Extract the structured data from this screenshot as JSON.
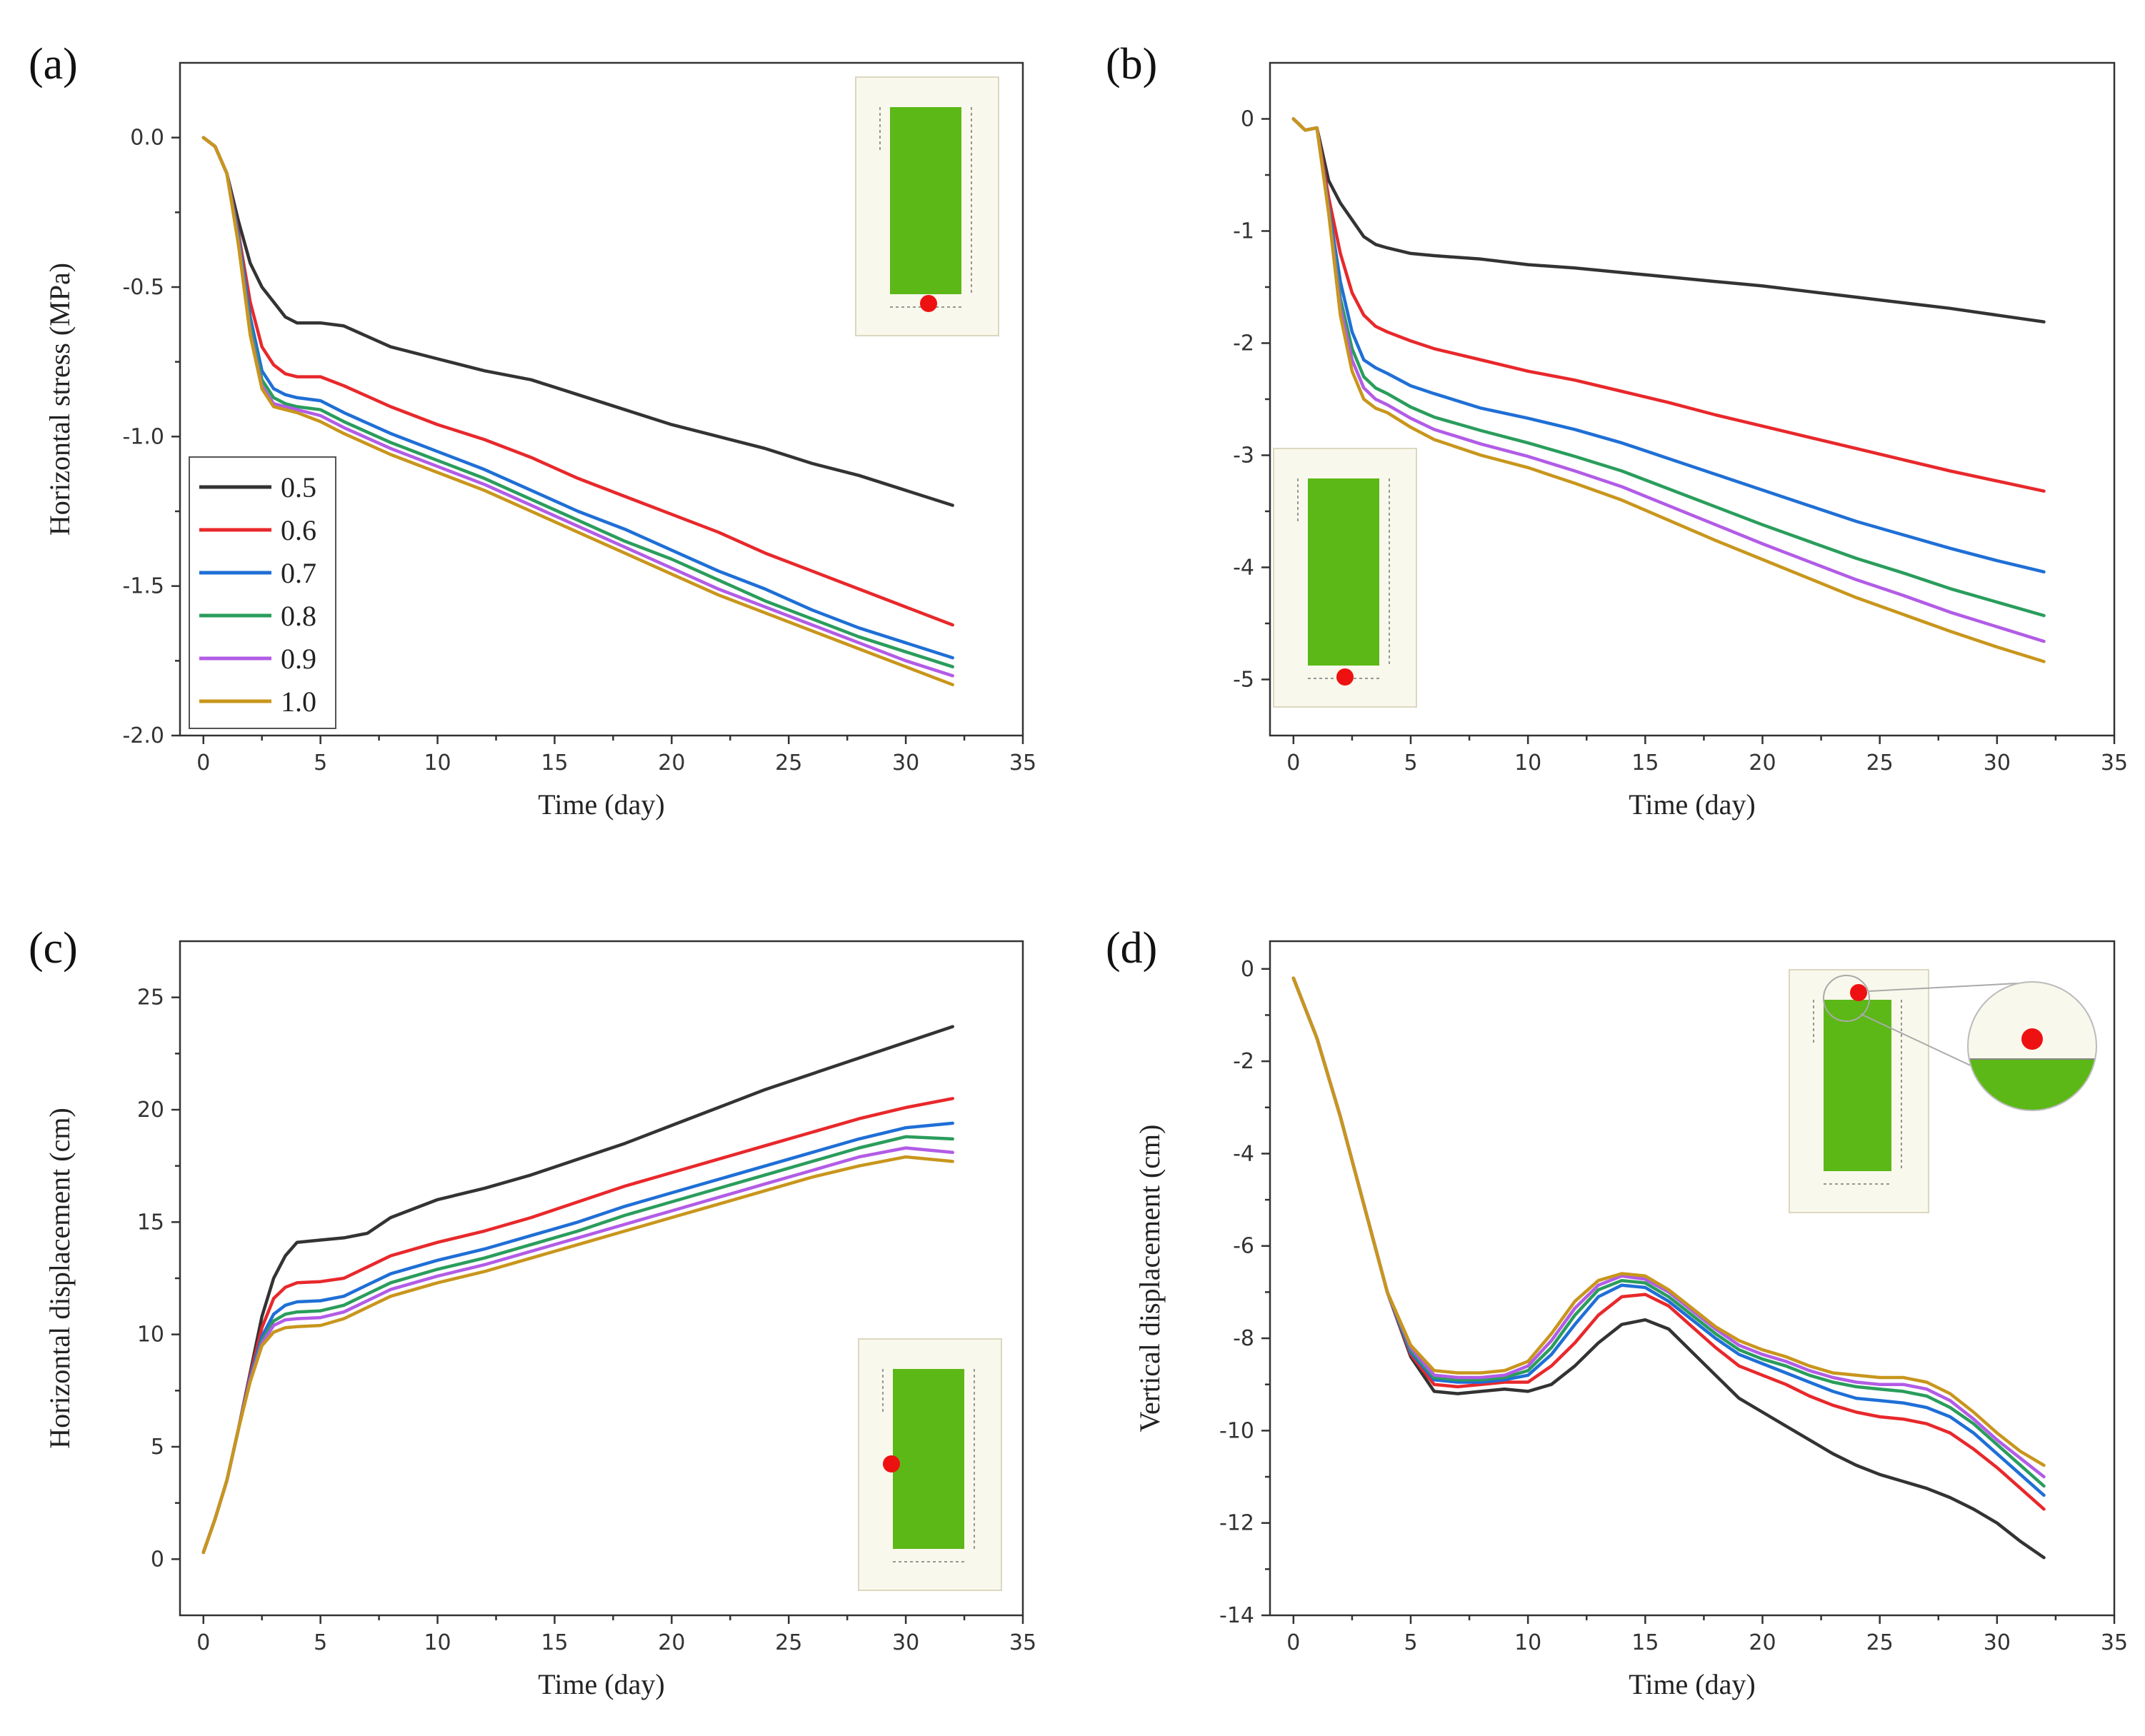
{
  "chart_data": [
    {
      "type": "line",
      "panel": "(a)",
      "xlabel": "Time (day)",
      "ylabel": "Horizontal stress (MPa)",
      "xlim": [
        -1,
        35
      ],
      "ylim": [
        -2.0,
        0.25
      ],
      "xticks": [
        0,
        5,
        10,
        15,
        20,
        25,
        30,
        35
      ],
      "yticks": [
        0.0,
        -0.5,
        -1.0,
        -1.5,
        -2.0
      ],
      "ytick_labels": [
        "0.0",
        "-0.5",
        "-1.0",
        "-1.5",
        "-2.0"
      ],
      "x": [
        0,
        0.5,
        1,
        1.5,
        2,
        2.5,
        3,
        3.5,
        4,
        5,
        6,
        8,
        10,
        12,
        14,
        16,
        18,
        20,
        22,
        24,
        26,
        28,
        30,
        32
      ],
      "series": [
        {
          "name": "0.5",
          "color": "#333333",
          "values": [
            0,
            -0.03,
            -0.12,
            -0.28,
            -0.42,
            -0.5,
            -0.55,
            -0.6,
            -0.62,
            -0.62,
            -0.63,
            -0.7,
            -0.74,
            -0.78,
            -0.81,
            -0.86,
            -0.91,
            -0.96,
            -1.0,
            -1.04,
            -1.09,
            -1.13,
            -1.18,
            -1.23
          ]
        },
        {
          "name": "0.6",
          "color": "#e8282b",
          "values": [
            0,
            -0.03,
            -0.12,
            -0.32,
            -0.55,
            -0.7,
            -0.76,
            -0.79,
            -0.8,
            -0.8,
            -0.83,
            -0.9,
            -0.96,
            -1.01,
            -1.07,
            -1.14,
            -1.2,
            -1.26,
            -1.32,
            -1.39,
            -1.45,
            -1.51,
            -1.57,
            -1.63
          ]
        },
        {
          "name": "0.7",
          "color": "#1f6fd6",
          "values": [
            0,
            -0.03,
            -0.12,
            -0.33,
            -0.6,
            -0.78,
            -0.84,
            -0.86,
            -0.87,
            -0.88,
            -0.92,
            -0.99,
            -1.05,
            -1.11,
            -1.18,
            -1.25,
            -1.31,
            -1.38,
            -1.45,
            -1.51,
            -1.58,
            -1.64,
            -1.69,
            -1.74
          ]
        },
        {
          "name": "0.8",
          "color": "#2a9d5c",
          "values": [
            0,
            -0.03,
            -0.12,
            -0.34,
            -0.63,
            -0.81,
            -0.87,
            -0.89,
            -0.9,
            -0.91,
            -0.95,
            -1.02,
            -1.08,
            -1.14,
            -1.21,
            -1.28,
            -1.35,
            -1.41,
            -1.48,
            -1.55,
            -1.61,
            -1.67,
            -1.72,
            -1.77
          ]
        },
        {
          "name": "0.9",
          "color": "#b25ce6",
          "values": [
            0,
            -0.03,
            -0.12,
            -0.35,
            -0.65,
            -0.83,
            -0.89,
            -0.9,
            -0.91,
            -0.93,
            -0.97,
            -1.04,
            -1.1,
            -1.16,
            -1.23,
            -1.3,
            -1.37,
            -1.44,
            -1.51,
            -1.57,
            -1.63,
            -1.69,
            -1.75,
            -1.8
          ]
        },
        {
          "name": "1.0",
          "color": "#c8961c",
          "values": [
            0,
            -0.03,
            -0.12,
            -0.36,
            -0.66,
            -0.84,
            -0.9,
            -0.91,
            -0.92,
            -0.95,
            -0.99,
            -1.06,
            -1.12,
            -1.18,
            -1.25,
            -1.32,
            -1.39,
            -1.46,
            -1.53,
            -1.59,
            -1.65,
            -1.71,
            -1.77,
            -1.83
          ]
        }
      ],
      "legend_position": "lower-left"
    },
    {
      "type": "line",
      "panel": "(b)",
      "xlabel": "Time (day)",
      "ylabel": "",
      "xlim": [
        -1,
        35
      ],
      "ylim": [
        -5.5,
        0.5
      ],
      "xticks": [
        0,
        5,
        10,
        15,
        20,
        25,
        30,
        35
      ],
      "yticks": [
        0,
        -1,
        -2,
        -3,
        -4,
        -5
      ],
      "ytick_labels": [
        "0",
        "-1",
        "-2",
        "-3",
        "-4",
        "-5"
      ],
      "x": [
        0,
        0.5,
        1,
        1.5,
        2,
        2.5,
        3,
        3.5,
        4,
        5,
        6,
        8,
        10,
        12,
        14,
        16,
        18,
        20,
        22,
        24,
        26,
        28,
        30,
        32
      ],
      "series": [
        {
          "name": "0.5",
          "color": "#333333",
          "values": [
            0,
            -0.1,
            -0.08,
            -0.55,
            -0.75,
            -0.9,
            -1.05,
            -1.12,
            -1.15,
            -1.2,
            -1.22,
            -1.25,
            -1.3,
            -1.33,
            -1.37,
            -1.41,
            -1.45,
            -1.49,
            -1.54,
            -1.59,
            -1.64,
            -1.69,
            -1.75,
            -1.81
          ]
        },
        {
          "name": "0.6",
          "color": "#e8282b",
          "values": [
            0,
            -0.1,
            -0.08,
            -0.7,
            -1.2,
            -1.55,
            -1.75,
            -1.85,
            -1.9,
            -1.98,
            -2.05,
            -2.15,
            -2.25,
            -2.33,
            -2.43,
            -2.53,
            -2.64,
            -2.74,
            -2.84,
            -2.94,
            -3.04,
            -3.14,
            -3.23,
            -3.32
          ]
        },
        {
          "name": "0.7",
          "color": "#1f6fd6",
          "values": [
            0,
            -0.1,
            -0.08,
            -0.78,
            -1.45,
            -1.9,
            -2.15,
            -2.22,
            -2.27,
            -2.38,
            -2.45,
            -2.58,
            -2.67,
            -2.77,
            -2.89,
            -3.03,
            -3.17,
            -3.31,
            -3.45,
            -3.59,
            -3.71,
            -3.83,
            -3.94,
            -4.04
          ]
        },
        {
          "name": "0.8",
          "color": "#2a9d5c",
          "values": [
            0,
            -0.1,
            -0.08,
            -0.8,
            -1.6,
            -2.05,
            -2.3,
            -2.4,
            -2.45,
            -2.57,
            -2.66,
            -2.78,
            -2.89,
            -3.01,
            -3.14,
            -3.3,
            -3.46,
            -3.62,
            -3.77,
            -3.92,
            -4.05,
            -4.19,
            -4.31,
            -4.43
          ]
        },
        {
          "name": "0.9",
          "color": "#b25ce6",
          "values": [
            0,
            -0.1,
            -0.08,
            -0.82,
            -1.68,
            -2.15,
            -2.4,
            -2.5,
            -2.55,
            -2.67,
            -2.77,
            -2.9,
            -3.01,
            -3.14,
            -3.28,
            -3.45,
            -3.62,
            -3.79,
            -3.95,
            -4.11,
            -4.25,
            -4.4,
            -4.53,
            -4.66
          ]
        },
        {
          "name": "1.0",
          "color": "#c8961c",
          "values": [
            0,
            -0.1,
            -0.08,
            -0.84,
            -1.75,
            -2.25,
            -2.5,
            -2.58,
            -2.62,
            -2.75,
            -2.86,
            -3.0,
            -3.11,
            -3.25,
            -3.4,
            -3.58,
            -3.76,
            -3.93,
            -4.1,
            -4.27,
            -4.42,
            -4.57,
            -4.71,
            -4.84
          ]
        }
      ]
    },
    {
      "type": "line",
      "panel": "(c)",
      "xlabel": "Time (day)",
      "ylabel": "Horizontal displacement (cm)",
      "xlim": [
        -1,
        35
      ],
      "ylim": [
        -2.5,
        27.5
      ],
      "xticks": [
        0,
        5,
        10,
        15,
        20,
        25,
        30,
        35
      ],
      "yticks": [
        0,
        5,
        10,
        15,
        20,
        25
      ],
      "ytick_labels": [
        "0",
        "5",
        "10",
        "15",
        "20",
        "25"
      ],
      "x": [
        0,
        0.5,
        1,
        1.5,
        2,
        2.5,
        3,
        3.5,
        4,
        5,
        6,
        7,
        8,
        10,
        12,
        14,
        16,
        18,
        20,
        22,
        24,
        26,
        28,
        30,
        32
      ],
      "series": [
        {
          "name": "0.5",
          "color": "#333333",
          "values": [
            0.3,
            1.8,
            3.5,
            5.8,
            8.3,
            10.8,
            12.5,
            13.5,
            14.1,
            14.2,
            14.3,
            14.5,
            15.2,
            16.0,
            16.5,
            17.1,
            17.8,
            18.5,
            19.3,
            20.1,
            20.9,
            21.6,
            22.3,
            23.0,
            23.7
          ]
        },
        {
          "name": "0.6",
          "color": "#e8282b",
          "values": [
            0.3,
            1.8,
            3.5,
            5.8,
            8.2,
            10.3,
            11.6,
            12.1,
            12.3,
            12.35,
            12.5,
            13.0,
            13.5,
            14.1,
            14.6,
            15.2,
            15.9,
            16.6,
            17.2,
            17.8,
            18.4,
            19.0,
            19.6,
            20.1,
            20.5
          ]
        },
        {
          "name": "0.7",
          "color": "#1f6fd6",
          "values": [
            0.3,
            1.8,
            3.5,
            5.8,
            8.1,
            9.9,
            10.9,
            11.3,
            11.45,
            11.5,
            11.7,
            12.2,
            12.7,
            13.3,
            13.8,
            14.4,
            15.0,
            15.7,
            16.3,
            16.9,
            17.5,
            18.1,
            18.7,
            19.2,
            19.4
          ]
        },
        {
          "name": "0.8",
          "color": "#2a9d5c",
          "values": [
            0.3,
            1.8,
            3.5,
            5.8,
            8.0,
            9.7,
            10.6,
            10.9,
            11.0,
            11.05,
            11.3,
            11.8,
            12.3,
            12.9,
            13.4,
            14.0,
            14.6,
            15.3,
            15.9,
            16.5,
            17.1,
            17.7,
            18.3,
            18.8,
            18.7
          ]
        },
        {
          "name": "0.9",
          "color": "#b25ce6",
          "values": [
            0.3,
            1.8,
            3.5,
            5.8,
            8.0,
            9.6,
            10.4,
            10.65,
            10.7,
            10.75,
            11.0,
            11.5,
            12.0,
            12.6,
            13.1,
            13.7,
            14.3,
            14.9,
            15.5,
            16.1,
            16.7,
            17.3,
            17.9,
            18.3,
            18.1
          ]
        },
        {
          "name": "1.0",
          "color": "#c8961c",
          "values": [
            0.3,
            1.8,
            3.5,
            5.8,
            7.9,
            9.5,
            10.1,
            10.3,
            10.35,
            10.4,
            10.7,
            11.2,
            11.7,
            12.3,
            12.8,
            13.4,
            14.0,
            14.6,
            15.2,
            15.8,
            16.4,
            17.0,
            17.5,
            17.9,
            17.7
          ]
        }
      ]
    },
    {
      "type": "line",
      "panel": "(d)",
      "xlabel": "Time (day)",
      "ylabel": "Vertical displacement (cm)",
      "xlim": [
        -1,
        35
      ],
      "ylim": [
        -14,
        0.6
      ],
      "xticks": [
        0,
        5,
        10,
        15,
        20,
        25,
        30,
        35
      ],
      "yticks": [
        0,
        -2,
        -4,
        -6,
        -8,
        -10,
        -12,
        -14
      ],
      "ytick_labels": [
        "0",
        "-2",
        "-4",
        "-6",
        "-8",
        "-10",
        "-12",
        "-14"
      ],
      "x": [
        0,
        1,
        2,
        3,
        4,
        5,
        6,
        7,
        8,
        9,
        10,
        11,
        12,
        13,
        14,
        15,
        16,
        17,
        18,
        19,
        20,
        21,
        22,
        23,
        24,
        25,
        26,
        27,
        28,
        29,
        30,
        31,
        32
      ],
      "series": [
        {
          "name": "0.5",
          "color": "#333333",
          "values": [
            -0.2,
            -1.5,
            -3.2,
            -5.1,
            -7.0,
            -8.4,
            -9.15,
            -9.2,
            -9.15,
            -9.1,
            -9.15,
            -9.0,
            -8.6,
            -8.1,
            -7.7,
            -7.6,
            -7.8,
            -8.3,
            -8.8,
            -9.3,
            -9.6,
            -9.9,
            -10.2,
            -10.5,
            -10.75,
            -10.95,
            -11.1,
            -11.25,
            -11.45,
            -11.7,
            -12.0,
            -12.4,
            -12.75
          ]
        },
        {
          "name": "0.6",
          "color": "#e8282b",
          "values": [
            -0.2,
            -1.5,
            -3.2,
            -5.1,
            -7.0,
            -8.35,
            -9.0,
            -9.05,
            -9.0,
            -8.95,
            -8.95,
            -8.6,
            -8.1,
            -7.5,
            -7.1,
            -7.05,
            -7.3,
            -7.75,
            -8.2,
            -8.6,
            -8.8,
            -9.0,
            -9.25,
            -9.45,
            -9.6,
            -9.7,
            -9.75,
            -9.85,
            -10.05,
            -10.4,
            -10.8,
            -11.25,
            -11.7
          ]
        },
        {
          "name": "0.7",
          "color": "#1f6fd6",
          "values": [
            -0.2,
            -1.5,
            -3.2,
            -5.1,
            -7.0,
            -8.3,
            -8.9,
            -8.95,
            -8.95,
            -8.9,
            -8.8,
            -8.35,
            -7.7,
            -7.1,
            -6.85,
            -6.9,
            -7.2,
            -7.6,
            -8.0,
            -8.35,
            -8.55,
            -8.75,
            -8.95,
            -9.15,
            -9.3,
            -9.35,
            -9.4,
            -9.5,
            -9.7,
            -10.05,
            -10.5,
            -10.95,
            -11.4
          ]
        },
        {
          "name": "0.8",
          "color": "#2a9d5c",
          "values": [
            -0.2,
            -1.5,
            -3.2,
            -5.1,
            -7.0,
            -8.25,
            -8.85,
            -8.9,
            -8.9,
            -8.85,
            -8.7,
            -8.2,
            -7.5,
            -6.95,
            -6.75,
            -6.8,
            -7.1,
            -7.5,
            -7.9,
            -8.25,
            -8.45,
            -8.6,
            -8.8,
            -8.95,
            -9.05,
            -9.1,
            -9.15,
            -9.25,
            -9.5,
            -9.85,
            -10.3,
            -10.75,
            -11.2
          ]
        },
        {
          "name": "0.9",
          "color": "#b25ce6",
          "values": [
            -0.2,
            -1.5,
            -3.2,
            -5.1,
            -7.0,
            -8.2,
            -8.8,
            -8.85,
            -8.85,
            -8.8,
            -8.6,
            -8.05,
            -7.35,
            -6.85,
            -6.65,
            -6.72,
            -7.0,
            -7.4,
            -7.8,
            -8.15,
            -8.35,
            -8.5,
            -8.7,
            -8.85,
            -8.95,
            -9.0,
            -9.0,
            -9.1,
            -9.35,
            -9.75,
            -10.2,
            -10.6,
            -11.0
          ]
        },
        {
          "name": "1.0",
          "color": "#c8961c",
          "values": [
            -0.2,
            -1.5,
            -3.2,
            -5.1,
            -7.0,
            -8.15,
            -8.7,
            -8.75,
            -8.75,
            -8.7,
            -8.5,
            -7.9,
            -7.2,
            -6.75,
            -6.6,
            -6.65,
            -6.95,
            -7.35,
            -7.75,
            -8.05,
            -8.25,
            -8.4,
            -8.6,
            -8.75,
            -8.8,
            -8.85,
            -8.85,
            -8.95,
            -9.2,
            -9.6,
            -10.05,
            -10.45,
            -10.75
          ]
        }
      ]
    }
  ]
}
